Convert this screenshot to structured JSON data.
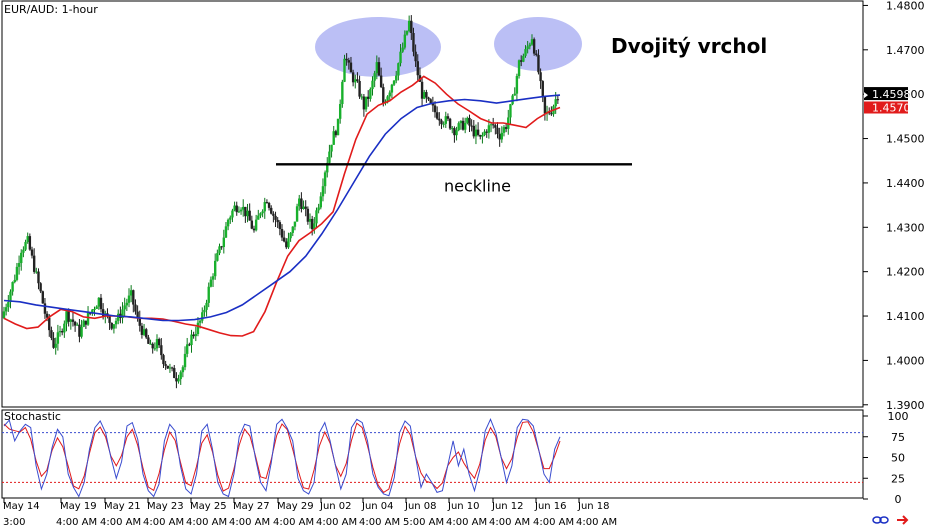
{
  "chart_data": [
    {
      "type": "line",
      "title": "EUR/AUD: 1-hour",
      "annotation_title": "Dvojitý vrchol",
      "annotation_neckline": "neckline",
      "y_ticks": [
        "1.4800",
        "1.4700",
        "1.4600",
        "1.4500",
        "1.4400",
        "1.4300",
        "1.4200",
        "1.4100",
        "1.4000",
        "1.3900"
      ],
      "ylim": [
        1.3895,
        1.481
      ],
      "price_label": "1.4598",
      "ma_label": "1.4570",
      "neckline_level": 1.4442,
      "x_labels": [
        "May 14",
        "May 19",
        "May 21",
        "May 23",
        "May 25",
        "May 27",
        "May 29",
        "Jun 02",
        "Jun 04",
        "Jun 08",
        "Jun 10",
        "Jun 12",
        "Jun 16",
        "Jun 18"
      ],
      "x_labels_lower": [
        "3:00",
        "4:00 AM",
        "4:00 AM",
        "4:00 AM",
        "4:00 AM",
        "4:00 AM",
        "4:00 AM",
        "4:00 AM",
        "4:00 AM",
        "5:00 AM",
        "4:00 AM",
        "4:00 AM",
        "4:00 AM",
        "4:00 AM",
        "4:00 AM"
      ],
      "price_path": [
        1.4095,
        1.4142,
        1.4188,
        1.4252,
        1.4268,
        1.421,
        1.4152,
        1.4085,
        1.4035,
        1.406,
        1.4105,
        1.4088,
        1.4062,
        1.4091,
        1.4115,
        1.4138,
        1.41,
        1.4082,
        1.4095,
        1.4125,
        1.4146,
        1.409,
        1.4058,
        1.4026,
        1.4038,
        1.4002,
        1.3978,
        1.3962,
        1.3985,
        1.4045,
        1.4068,
        1.4097,
        1.416,
        1.4218,
        1.4262,
        1.4318,
        1.4345,
        1.435,
        1.4325,
        1.429,
        1.4338,
        1.4365,
        1.4328,
        1.4297,
        1.4255,
        1.4295,
        1.4365,
        1.433,
        1.4298,
        1.4355,
        1.443,
        1.4495,
        1.4532,
        1.469,
        1.4645,
        1.4618,
        1.4572,
        1.4605,
        1.4666,
        1.458,
        1.4612,
        1.4652,
        1.4705,
        1.4762,
        1.4668,
        1.46,
        1.4578,
        1.456,
        1.4545,
        1.4538,
        1.452,
        1.4528,
        1.4536,
        1.4515,
        1.4498,
        1.4522,
        1.453,
        1.4508,
        1.453,
        1.4585,
        1.467,
        1.4695,
        1.473,
        1.465,
        1.4552,
        1.4565,
        1.46
      ],
      "series": [
        {
          "name": "",
          "color": "#e11b1b",
          "values": [
            1.4095,
            1.4082,
            1.4072,
            1.4075,
            1.4098,
            1.4115,
            1.411,
            1.4098,
            1.4095,
            1.41,
            1.41,
            1.4098,
            1.4095,
            1.4095,
            1.4093,
            1.4088,
            1.4082,
            1.4078,
            1.407,
            1.4062,
            1.4056,
            1.4055,
            1.4065,
            1.411,
            1.4175,
            1.4235,
            1.427,
            1.4288,
            1.4308,
            1.4335,
            1.442,
            1.4498,
            1.4555,
            1.4575,
            1.4585,
            1.4605,
            1.462,
            1.464,
            1.4625,
            1.46,
            1.4578,
            1.4562,
            1.4545,
            1.4535,
            1.4535,
            1.453,
            1.4525,
            1.4545,
            1.456,
            1.457
          ]
        },
        {
          "name": "",
          "color": "#1a2fc4",
          "values": [
            1.4135,
            1.4132,
            1.4125,
            1.412,
            1.4115,
            1.411,
            1.4105,
            1.41,
            1.4098,
            1.4094,
            1.409,
            1.409,
            1.4092,
            1.4098,
            1.4108,
            1.4125,
            1.415,
            1.4175,
            1.42,
            1.4235,
            1.4285,
            1.434,
            1.44,
            1.446,
            1.451,
            1.4545,
            1.457,
            1.458,
            1.4585,
            1.4588,
            1.4585,
            1.458,
            1.4585,
            1.459,
            1.4595,
            1.4598
          ]
        }
      ],
      "stochastic": {
        "label": "Stochastic",
        "y_ticks": [
          "100",
          "75",
          "50",
          "25",
          "0"
        ],
        "levels": [
          80,
          20
        ],
        "k_values": [
          88,
          95,
          70,
          82,
          90,
          86,
          40,
          12,
          30,
          62,
          84,
          75,
          30,
          14,
          3,
          20,
          60,
          86,
          94,
          80,
          50,
          25,
          45,
          88,
          92,
          72,
          30,
          10,
          3,
          18,
          70,
          90,
          82,
          40,
          12,
          6,
          30,
          82,
          90,
          60,
          20,
          6,
          3,
          30,
          75,
          90,
          88,
          50,
          20,
          10,
          44,
          90,
          96,
          85,
          70,
          25,
          10,
          6,
          20,
          80,
          92,
          70,
          40,
          12,
          30,
          86,
          96,
          92,
          70,
          30,
          14,
          6,
          4,
          26,
          80,
          94,
          88,
          50,
          14,
          30,
          20,
          8,
          10,
          40,
          70,
          40,
          60,
          30,
          10,
          35,
          82,
          96,
          80,
          50,
          20,
          40,
          86,
          96,
          95,
          88,
          60,
          30,
          20,
          60,
          75
        ]
      }
    }
  ]
}
